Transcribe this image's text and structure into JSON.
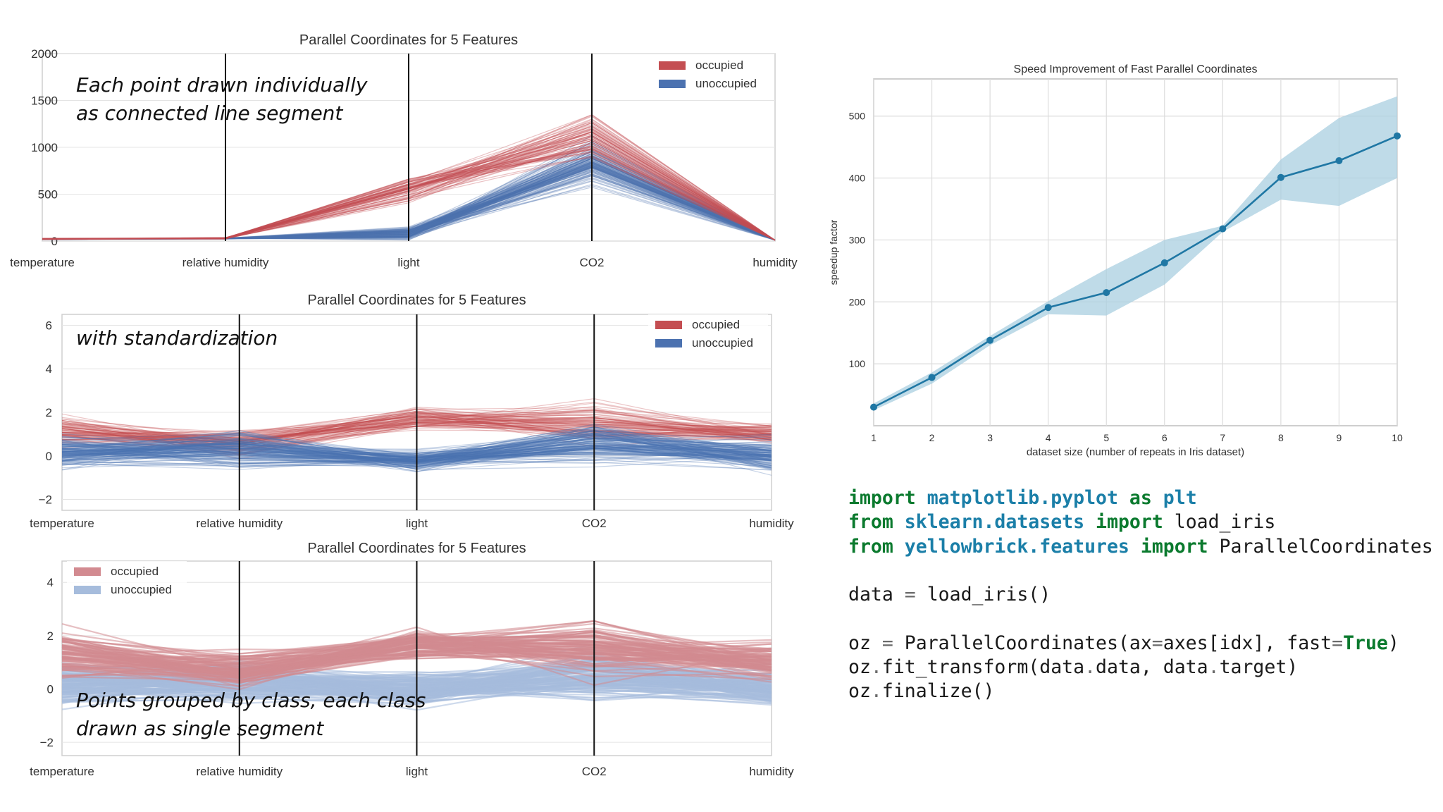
{
  "parallel_panels": [
    {
      "title": "Parallel Coordinates for 5 Features",
      "legend": [
        "occupied",
        "unoccupied"
      ],
      "yticks": [
        "0",
        "500",
        "1000",
        "1500",
        "2000"
      ],
      "features": [
        "temperature",
        "relative humidity",
        "light",
        "CO2",
        "humidity"
      ],
      "annotation": [
        "Each point drawn individually",
        "as connected line segment"
      ]
    },
    {
      "title": "Parallel Coordinates for 5 Features",
      "legend": [
        "occupied",
        "unoccupied"
      ],
      "yticks": [
        "−2",
        "0",
        "2",
        "4",
        "6"
      ],
      "features": [
        "temperature",
        "relative humidity",
        "light",
        "CO2",
        "humidity"
      ],
      "annotation": [
        "with standardization"
      ]
    },
    {
      "title": "Parallel Coordinates for 5 Features",
      "legend": [
        "occupied",
        "unoccupied"
      ],
      "yticks": [
        "−2",
        "0",
        "2",
        "4"
      ],
      "features": [
        "temperature",
        "relative humidity",
        "light",
        "CO2",
        "humidity"
      ],
      "annotation": [
        "Points grouped by class, each class",
        "drawn as single segment"
      ]
    }
  ],
  "chart_data": [
    {
      "type": "line",
      "title": "Parallel Coordinates for 5 Features",
      "categories": [
        "temperature",
        "relative humidity",
        "light",
        "CO2",
        "humidity"
      ],
      "ylim": [
        0,
        2000
      ],
      "legend": "top-right",
      "grid": true,
      "series": [
        {
          "name": "occupied",
          "color": "#c44e52",
          "values": [
            22,
            30,
            550,
            1100,
            5
          ]
        },
        {
          "name": "unoccupied",
          "color": "#4c72b0",
          "values": [
            20,
            28,
            80,
            850,
            4
          ]
        }
      ]
    },
    {
      "type": "line",
      "title": "Parallel Coordinates for 5 Features",
      "categories": [
        "temperature",
        "relative humidity",
        "light",
        "CO2",
        "humidity"
      ],
      "ylim": [
        -2.5,
        6.5
      ],
      "legend": "top-right",
      "grid": true,
      "series": [
        {
          "name": "occupied",
          "color": "#c44e52",
          "values": [
            1.2,
            0.6,
            1.7,
            1.5,
            1.0
          ]
        },
        {
          "name": "unoccupied",
          "color": "#4c72b0",
          "values": [
            0.2,
            0.3,
            -0.2,
            0.6,
            0.0
          ]
        }
      ]
    },
    {
      "type": "line",
      "title": "Parallel Coordinates for 5 Features",
      "categories": [
        "temperature",
        "relative humidity",
        "light",
        "CO2",
        "humidity"
      ],
      "ylim": [
        -2.5,
        4.8
      ],
      "legend": "top-left",
      "grid": true,
      "series": [
        {
          "name": "occupied",
          "color": "#d28a90",
          "values": [
            1.3,
            0.7,
            1.7,
            1.6,
            1.0
          ]
        },
        {
          "name": "unoccupied",
          "color": "#a6bcdc",
          "values": [
            0.2,
            0.3,
            0.0,
            0.5,
            0.0
          ]
        }
      ]
    },
    {
      "type": "line",
      "title": "Speed Improvement of Fast Parallel Coordinates",
      "xlabel": "dataset size (number of repeats in Iris dataset)",
      "ylabel": "speedup factor",
      "xlim": [
        1,
        10
      ],
      "ylim": [
        0,
        560
      ],
      "grid": true,
      "xticks": [
        1,
        2,
        3,
        4,
        5,
        6,
        7,
        8,
        9,
        10
      ],
      "yticks": [
        100,
        200,
        300,
        400,
        500
      ],
      "line_color": "#1f77a4",
      "band_color": "#a9cfe0",
      "x": [
        1,
        2,
        3,
        4,
        5,
        6,
        7,
        8,
        9,
        10
      ],
      "values": [
        30,
        78,
        138,
        191,
        215,
        263,
        318,
        401,
        428,
        468
      ],
      "band_low": [
        25,
        68,
        130,
        180,
        178,
        228,
        313,
        365,
        355,
        400
      ],
      "band_high": [
        36,
        86,
        145,
        201,
        253,
        300,
        323,
        430,
        497,
        532
      ]
    }
  ],
  "code_block": [
    [
      {
        "t": "import",
        "c": "kw"
      },
      {
        "t": " ",
        "c": ""
      },
      {
        "t": "matplotlib.pyplot",
        "c": "mod"
      },
      {
        "t": " ",
        "c": ""
      },
      {
        "t": "as",
        "c": "kw"
      },
      {
        "t": " ",
        "c": ""
      },
      {
        "t": "plt",
        "c": "mod"
      }
    ],
    [
      {
        "t": "from",
        "c": "kw"
      },
      {
        "t": " ",
        "c": ""
      },
      {
        "t": "sklearn.datasets",
        "c": "mod"
      },
      {
        "t": " ",
        "c": ""
      },
      {
        "t": "import",
        "c": "kw"
      },
      {
        "t": " load_iris",
        "c": ""
      }
    ],
    [
      {
        "t": "from",
        "c": "kw"
      },
      {
        "t": " ",
        "c": ""
      },
      {
        "t": "yellowbrick.features",
        "c": "mod"
      },
      {
        "t": " ",
        "c": ""
      },
      {
        "t": "import",
        "c": "kw"
      },
      {
        "t": " ParallelCoordinates",
        "c": ""
      }
    ],
    [],
    [
      {
        "t": "data ",
        "c": ""
      },
      {
        "t": "=",
        "c": "op"
      },
      {
        "t": " load_iris()",
        "c": ""
      }
    ],
    [],
    [
      {
        "t": "oz ",
        "c": ""
      },
      {
        "t": "=",
        "c": "op"
      },
      {
        "t": " ParallelCoordinates(ax",
        "c": ""
      },
      {
        "t": "=",
        "c": "op"
      },
      {
        "t": "axes[idx], fast",
        "c": ""
      },
      {
        "t": "=",
        "c": "op"
      },
      {
        "t": "True",
        "c": "bool"
      },
      {
        "t": ")",
        "c": ""
      }
    ],
    [
      {
        "t": "oz",
        "c": ""
      },
      {
        "t": ".",
        "c": "op"
      },
      {
        "t": "fit_transform(data",
        "c": ""
      },
      {
        "t": ".",
        "c": "op"
      },
      {
        "t": "data, data",
        "c": ""
      },
      {
        "t": ".",
        "c": "op"
      },
      {
        "t": "target)",
        "c": ""
      }
    ],
    [
      {
        "t": "oz",
        "c": ""
      },
      {
        "t": ".",
        "c": "op"
      },
      {
        "t": "finalize()",
        "c": ""
      }
    ]
  ]
}
